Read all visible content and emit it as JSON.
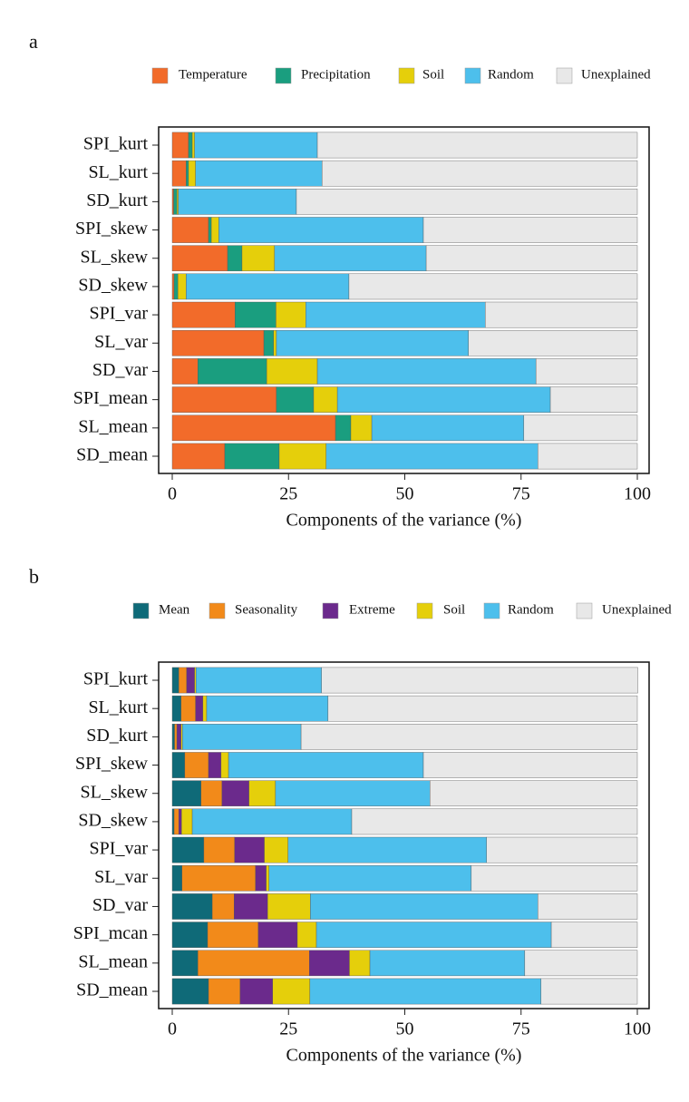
{
  "chart_data": [
    {
      "type": "bar",
      "orientation": "horizontal",
      "stacked": true,
      "panel_label": "a",
      "categories": [
        "SPI_kurt",
        "SL_kurt",
        "SD_kurt",
        "SPI_skew",
        "SL_skew",
        "SD_skew",
        "SPI_var",
        "SL_var",
        "SD_var",
        "SPI_mean",
        "SL_mean",
        "SD_mean"
      ],
      "series": [
        {
          "name": "Temperature",
          "color": "#f26b2a",
          "values": [
            3.5,
            3.0,
            0.3,
            7.8,
            11.9,
            0.4,
            13.5,
            19.7,
            5.5,
            22.4,
            35.1,
            11.3
          ]
        },
        {
          "name": "Precipitation",
          "color": "#1a9e7f",
          "values": [
            0.8,
            0.5,
            0.7,
            0.6,
            3.1,
            0.8,
            8.8,
            2.1,
            14.8,
            8.0,
            3.3,
            11.7
          ]
        },
        {
          "name": "Soil",
          "color": "#e5cf0b",
          "values": [
            0.5,
            1.5,
            0.3,
            1.6,
            7.0,
            1.8,
            6.4,
            0.6,
            10.9,
            5.1,
            4.5,
            10.1
          ]
        },
        {
          "name": "Random",
          "color": "#4dbfec",
          "values": [
            26.4,
            27.2,
            25.4,
            44.0,
            32.6,
            35.0,
            38.6,
            41.3,
            47.0,
            45.8,
            32.7,
            45.5
          ]
        },
        {
          "name": "Unexplained",
          "color": "#e8e8e8",
          "values": [
            68.8,
            67.8,
            73.3,
            46.0,
            45.4,
            62.0,
            32.7,
            36.3,
            21.8,
            18.7,
            24.4,
            21.4
          ]
        }
      ],
      "xlim": [
        0,
        100
      ],
      "xticks": [
        0,
        25,
        50,
        75,
        100
      ],
      "xlabel": "Components of the variance (%)",
      "legend": "top"
    },
    {
      "type": "bar",
      "orientation": "horizontal",
      "stacked": true,
      "panel_label": "b",
      "categories": [
        "SPI_kurt",
        "SL_kurt",
        "SD_kurt",
        "SPI_skew",
        "SL_skew",
        "SD_skew",
        "SPI_var",
        "SL_var",
        "SD_var",
        "SPI_mcan",
        "SL_mean",
        "SD_mean"
      ],
      "series": [
        {
          "name": "Mean",
          "color": "#0f6a78",
          "values": [
            1.4,
            1.9,
            0.5,
            2.7,
            6.2,
            0.4,
            6.8,
            2.1,
            8.6,
            7.6,
            5.5,
            7.8
          ]
        },
        {
          "name": "Seasonality",
          "color": "#f28a1a",
          "values": [
            1.7,
            3.1,
            0.5,
            5.1,
            4.5,
            1.0,
            6.6,
            15.8,
            4.7,
            10.9,
            24.0,
            6.8
          ]
        },
        {
          "name": "Extreme",
          "color": "#6b2a8c",
          "values": [
            1.7,
            1.6,
            0.9,
            2.7,
            5.8,
            0.6,
            6.4,
            2.3,
            7.2,
            8.4,
            8.6,
            7.0
          ]
        },
        {
          "name": "Soil",
          "color": "#e5cf0b",
          "values": [
            0.3,
            0.8,
            0.3,
            1.6,
            5.7,
            2.3,
            5.1,
            0.6,
            9.2,
            4.1,
            4.4,
            8.0
          ]
        },
        {
          "name": "Random",
          "color": "#4dbfec",
          "values": [
            27.0,
            26.1,
            25.5,
            41.9,
            33.2,
            34.3,
            42.7,
            43.5,
            48.9,
            50.5,
            33.3,
            49.7
          ]
        },
        {
          "name": "Unexplained",
          "color": "#e8e8e8",
          "values": [
            68.0,
            66.5,
            72.3,
            46.0,
            44.6,
            61.4,
            32.4,
            35.7,
            21.4,
            18.5,
            24.2,
            20.7
          ]
        }
      ],
      "xlim": [
        0,
        100
      ],
      "xticks": [
        0,
        25,
        50,
        75,
        100
      ],
      "xlabel": "Components of the variance (%)",
      "legend": "top"
    }
  ]
}
